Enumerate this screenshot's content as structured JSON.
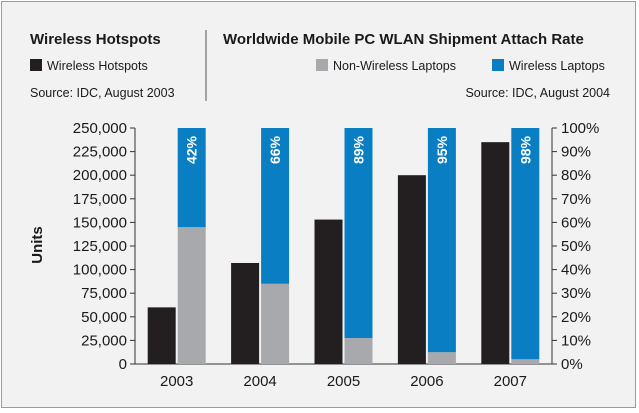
{
  "left_panel": {
    "title": "Wireless Hotspots",
    "legend_label": "Wireless Hotspots",
    "source": "Source: IDC, August 2003"
  },
  "right_panel": {
    "title": "Worldwide Mobile PC WLAN Shipment Attach Rate",
    "legend_non_wireless": "Non-Wireless Laptops",
    "legend_wireless": "Wireless Laptops",
    "source": "Source: IDC, August 2004"
  },
  "colors": {
    "hotspots": "#231f20",
    "non_wireless": "#a7a9ac",
    "wireless": "#0a7ec2",
    "background": "#f2f2f2"
  },
  "chart_data": {
    "type": "bar",
    "title": "Worldwide Mobile PC WLAN Shipment Attach Rate",
    "ylabel": "Units",
    "categories": [
      "2003",
      "2004",
      "2005",
      "2006",
      "2007"
    ],
    "ylim": [
      0,
      250000
    ],
    "y2lim": [
      0,
      100
    ],
    "y_ticks": [
      "0",
      "25,000",
      "50,000",
      "75,000",
      "100,000",
      "125,000",
      "150,000",
      "175,000",
      "200,000",
      "225,000",
      "250,000"
    ],
    "y2_ticks": [
      "0%",
      "10%",
      "20%",
      "30%",
      "40%",
      "50%",
      "60%",
      "70%",
      "80%",
      "90%",
      "100%"
    ],
    "series": [
      {
        "name": "Wireless Hotspots",
        "axis": "left",
        "values": [
          60000,
          107000,
          153000,
          200000,
          235000
        ]
      },
      {
        "name": "Non-Wireless Laptops",
        "axis": "right",
        "stacked": true,
        "values": [
          58,
          34,
          11,
          5,
          2
        ]
      },
      {
        "name": "Wireless Laptops",
        "axis": "right",
        "stacked": true,
        "values": [
          42,
          66,
          89,
          95,
          98
        ]
      }
    ],
    "data_labels": [
      "42%",
      "66%",
      "89%",
      "95%",
      "98%"
    ]
  }
}
